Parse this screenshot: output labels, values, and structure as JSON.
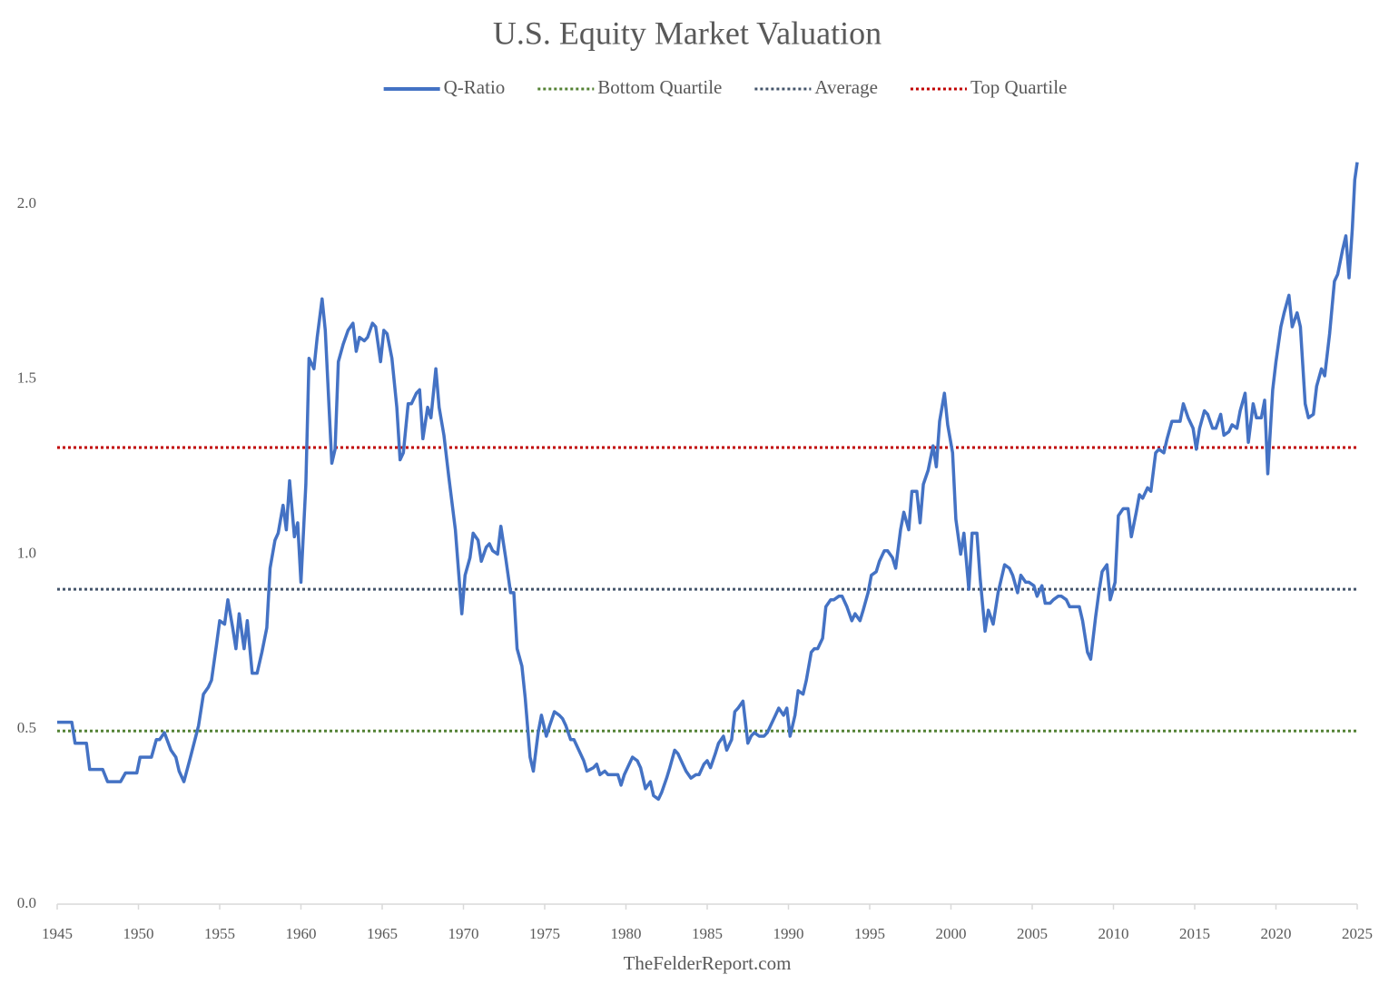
{
  "chart_data": {
    "type": "line",
    "title": "U.S. Equity Market Valuation",
    "source": "TheFelderReport.com",
    "xlim": [
      1945,
      2025
    ],
    "xticks": [
      1945,
      1950,
      1955,
      1960,
      1965,
      1970,
      1975,
      1980,
      1985,
      1990,
      1995,
      2000,
      2005,
      2010,
      2015,
      2020,
      2025
    ],
    "ylim": [
      0,
      2.2
    ],
    "yticks": [
      {
        "value": 0,
        "label": "0.0"
      },
      0.5,
      {
        "value": 1,
        "label": "1.0"
      },
      1.5,
      {
        "value": 2,
        "label": "2.0"
      }
    ],
    "grid": false,
    "legend": "top",
    "x": [
      1945.0,
      1945.9,
      1946.1,
      1946.8,
      1947.0,
      1947.8,
      1948.1,
      1948.9,
      1949.2,
      1949.9,
      1950.1,
      1950.8,
      1951.1,
      1951.3,
      1951.6,
      1952.0,
      1952.3,
      1952.5,
      1952.8,
      1953.2,
      1953.7,
      1954.0,
      1954.3,
      1954.5,
      1954.8,
      1955.0,
      1955.3,
      1955.5,
      1955.8,
      1956.0,
      1956.2,
      1956.5,
      1956.7,
      1957.0,
      1957.3,
      1957.6,
      1957.9,
      1958.1,
      1958.4,
      1958.6,
      1958.9,
      1959.1,
      1959.3,
      1959.6,
      1959.8,
      1960.0,
      1960.3,
      1960.5,
      1960.8,
      1961.0,
      1961.3,
      1961.5,
      1961.9,
      1962.1,
      1962.3,
      1962.6,
      1962.9,
      1963.2,
      1963.4,
      1963.6,
      1963.9,
      1964.1,
      1964.4,
      1964.6,
      1964.9,
      1965.1,
      1965.3,
      1965.6,
      1965.9,
      1966.1,
      1966.3,
      1966.6,
      1966.8,
      1967.1,
      1967.3,
      1967.5,
      1967.8,
      1968.0,
      1968.3,
      1968.5,
      1968.8,
      1969.1,
      1969.5,
      1969.9,
      1970.1,
      1970.4,
      1970.6,
      1970.9,
      1971.1,
      1971.4,
      1971.6,
      1971.8,
      1972.1,
      1972.3,
      1972.6,
      1972.9,
      1973.1,
      1973.3,
      1973.6,
      1973.8,
      1974.1,
      1974.3,
      1974.6,
      1974.8,
      1975.1,
      1975.3,
      1975.6,
      1975.9,
      1976.1,
      1976.3,
      1976.6,
      1976.8,
      1977.1,
      1977.4,
      1977.6,
      1978.0,
      1978.2,
      1978.4,
      1978.7,
      1978.9,
      1979.2,
      1979.5,
      1979.7,
      1979.9,
      1980.2,
      1980.4,
      1980.7,
      1980.9,
      1981.2,
      1981.5,
      1981.7,
      1982.0,
      1982.2,
      1982.5,
      1982.7,
      1983.0,
      1983.2,
      1983.5,
      1983.7,
      1984.0,
      1984.3,
      1984.5,
      1984.8,
      1985.0,
      1985.2,
      1985.5,
      1985.7,
      1986.0,
      1986.2,
      1986.5,
      1986.7,
      1986.9,
      1987.2,
      1987.5,
      1987.7,
      1987.9,
      1988.2,
      1988.5,
      1988.7,
      1988.9,
      1989.2,
      1989.4,
      1989.7,
      1989.9,
      1990.1,
      1990.4,
      1990.6,
      1990.9,
      1991.1,
      1991.4,
      1991.6,
      1991.8,
      1992.1,
      1992.3,
      1992.6,
      1992.8,
      1993.1,
      1993.3,
      1993.6,
      1993.9,
      1994.1,
      1994.4,
      1994.6,
      1994.9,
      1995.1,
      1995.4,
      1995.6,
      1995.9,
      1996.1,
      1996.4,
      1996.6,
      1996.9,
      1997.1,
      1997.4,
      1997.6,
      1997.9,
      1998.1,
      1998.3,
      1998.6,
      1998.9,
      1999.1,
      1999.3,
      1999.6,
      1999.8,
      2000.1,
      2000.3,
      2000.6,
      2000.8,
      2001.1,
      2001.3,
      2001.6,
      2001.8,
      2002.1,
      2002.3,
      2002.6,
      2002.9,
      2003.1,
      2003.3,
      2003.6,
      2003.8,
      2004.1,
      2004.3,
      2004.6,
      2004.8,
      2005.1,
      2005.3,
      2005.6,
      2005.8,
      2006.1,
      2006.3,
      2006.6,
      2006.8,
      2007.1,
      2007.3,
      2007.6,
      2007.9,
      2008.1,
      2008.4,
      2008.6,
      2008.9,
      2009.1,
      2009.3,
      2009.6,
      2009.8,
      2010.1,
      2010.3,
      2010.6,
      2010.9,
      2011.1,
      2011.4,
      2011.6,
      2011.8,
      2012.1,
      2012.3,
      2012.6,
      2012.8,
      2013.1,
      2013.3,
      2013.6,
      2013.8,
      2014.1,
      2014.3,
      2014.6,
      2014.9,
      2015.1,
      2015.3,
      2015.6,
      2015.8,
      2016.1,
      2016.3,
      2016.6,
      2016.8,
      2017.1,
      2017.3,
      2017.6,
      2017.8,
      2018.1,
      2018.3,
      2018.6,
      2018.8,
      2019.1,
      2019.3,
      2019.5,
      2019.8,
      2020.0,
      2020.3,
      2020.5,
      2020.8,
      2021.0,
      2021.3,
      2021.5,
      2021.8,
      2022.0,
      2022.3,
      2022.5,
      2022.8,
      2023.0,
      2023.3,
      2023.6,
      2023.8,
      2024.1,
      2024.3,
      2024.5,
      2024.7,
      2024.85,
      2025.0
    ],
    "series": [
      {
        "name": "Q-Ratio",
        "color": "#4472c4",
        "values": [
          0.52,
          0.52,
          0.46,
          0.46,
          0.385,
          0.385,
          0.35,
          0.35,
          0.375,
          0.375,
          0.42,
          0.42,
          0.47,
          0.47,
          0.49,
          0.44,
          0.42,
          0.38,
          0.35,
          0.42,
          0.51,
          0.6,
          0.62,
          0.64,
          0.74,
          0.81,
          0.8,
          0.87,
          0.79,
          0.73,
          0.83,
          0.73,
          0.81,
          0.66,
          0.66,
          0.72,
          0.79,
          0.96,
          1.04,
          1.06,
          1.14,
          1.07,
          1.21,
          1.05,
          1.09,
          0.92,
          1.2,
          1.56,
          1.53,
          1.62,
          1.73,
          1.64,
          1.26,
          1.3,
          1.55,
          1.6,
          1.64,
          1.66,
          1.58,
          1.62,
          1.61,
          1.62,
          1.66,
          1.65,
          1.55,
          1.64,
          1.63,
          1.56,
          1.42,
          1.27,
          1.29,
          1.43,
          1.43,
          1.46,
          1.47,
          1.33,
          1.42,
          1.39,
          1.53,
          1.42,
          1.34,
          1.22,
          1.07,
          0.83,
          0.94,
          0.99,
          1.06,
          1.04,
          0.98,
          1.02,
          1.03,
          1.01,
          1.0,
          1.08,
          0.99,
          0.89,
          0.89,
          0.73,
          0.68,
          0.59,
          0.42,
          0.38,
          0.49,
          0.54,
          0.48,
          0.51,
          0.55,
          0.54,
          0.53,
          0.51,
          0.47,
          0.47,
          0.44,
          0.41,
          0.38,
          0.39,
          0.4,
          0.37,
          0.38,
          0.37,
          0.37,
          0.37,
          0.34,
          0.37,
          0.4,
          0.42,
          0.41,
          0.39,
          0.33,
          0.35,
          0.31,
          0.3,
          0.32,
          0.36,
          0.39,
          0.44,
          0.43,
          0.4,
          0.38,
          0.36,
          0.37,
          0.37,
          0.4,
          0.41,
          0.39,
          0.43,
          0.46,
          0.48,
          0.44,
          0.47,
          0.55,
          0.56,
          0.58,
          0.46,
          0.48,
          0.49,
          0.48,
          0.48,
          0.49,
          0.51,
          0.54,
          0.56,
          0.54,
          0.56,
          0.48,
          0.54,
          0.61,
          0.6,
          0.64,
          0.72,
          0.73,
          0.73,
          0.76,
          0.85,
          0.87,
          0.87,
          0.88,
          0.88,
          0.85,
          0.81,
          0.83,
          0.81,
          0.84,
          0.89,
          0.94,
          0.95,
          0.98,
          1.01,
          1.01,
          0.99,
          0.96,
          1.07,
          1.12,
          1.07,
          1.18,
          1.18,
          1.09,
          1.2,
          1.24,
          1.31,
          1.25,
          1.38,
          1.46,
          1.37,
          1.29,
          1.1,
          1.0,
          1.06,
          0.9,
          1.06,
          1.06,
          0.93,
          0.78,
          0.84,
          0.8,
          0.89,
          0.93,
          0.97,
          0.96,
          0.94,
          0.89,
          0.94,
          0.92,
          0.92,
          0.91,
          0.88,
          0.91,
          0.86,
          0.86,
          0.87,
          0.88,
          0.88,
          0.87,
          0.85,
          0.85,
          0.85,
          0.81,
          0.72,
          0.7,
          0.82,
          0.89,
          0.95,
          0.97,
          0.87,
          0.92,
          1.11,
          1.13,
          1.13,
          1.05,
          1.12,
          1.17,
          1.16,
          1.19,
          1.18,
          1.29,
          1.3,
          1.29,
          1.33,
          1.38,
          1.38,
          1.38,
          1.43,
          1.39,
          1.36,
          1.3,
          1.36,
          1.41,
          1.4,
          1.36,
          1.36,
          1.4,
          1.34,
          1.35,
          1.37,
          1.36,
          1.41,
          1.46,
          1.32,
          1.43,
          1.39,
          1.39,
          1.44,
          1.23,
          1.47,
          1.55,
          1.65,
          1.69,
          1.74,
          1.65,
          1.69,
          1.65,
          1.43,
          1.39,
          1.4,
          1.48,
          1.53,
          1.51,
          1.63,
          1.78,
          1.8,
          1.87,
          1.91,
          1.79,
          1.93,
          2.07,
          2.12
        ]
      }
    ],
    "reference_lines": [
      {
        "name": "Bottom Quartile",
        "color": "#548235",
        "value": 0.495
      },
      {
        "name": "Average",
        "color": "#44546a",
        "value": 0.9
      },
      {
        "name": "Top Quartile",
        "color": "#c00000",
        "value": 1.305
      }
    ]
  }
}
